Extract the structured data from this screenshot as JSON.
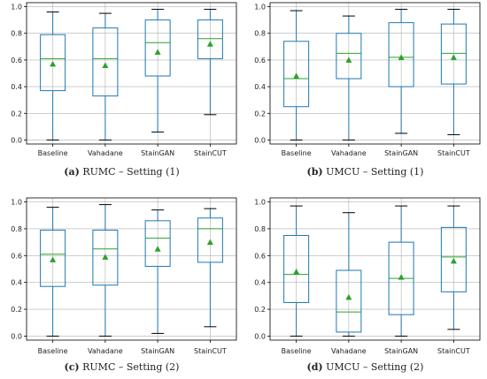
{
  "chart_data": [
    {
      "type": "box",
      "categories": [
        "Baseline",
        "Vahadane",
        "StainGAN",
        "StainCUT"
      ],
      "yticks": [
        "0.0",
        "0.2",
        "0.4",
        "0.6",
        "0.8",
        "1.0"
      ],
      "ylim": [
        -0.03,
        1.03
      ],
      "grid": true,
      "caption_label": "(a)",
      "caption_text": "RUMC – Setting (1)",
      "boxes": [
        {
          "whisker_low": 0.0,
          "q1": 0.37,
          "median": 0.61,
          "q3": 0.79,
          "whisker_high": 0.96,
          "mean": 0.57
        },
        {
          "whisker_low": 0.0,
          "q1": 0.33,
          "median": 0.61,
          "q3": 0.84,
          "whisker_high": 0.95,
          "mean": 0.56
        },
        {
          "whisker_low": 0.06,
          "q1": 0.48,
          "median": 0.73,
          "q3": 0.9,
          "whisker_high": 0.98,
          "mean": 0.66
        },
        {
          "whisker_low": 0.19,
          "q1": 0.61,
          "median": 0.76,
          "q3": 0.9,
          "whisker_high": 0.98,
          "mean": 0.72
        }
      ]
    },
    {
      "type": "box",
      "categories": [
        "Baseline",
        "Vahadane",
        "StainGAN",
        "StainCUT"
      ],
      "yticks": [
        "0.0",
        "0.2",
        "0.4",
        "0.6",
        "0.8",
        "1.0"
      ],
      "ylim": [
        -0.03,
        1.03
      ],
      "grid": true,
      "caption_label": "(b)",
      "caption_text": "UMCU – Setting (1)",
      "boxes": [
        {
          "whisker_low": 0.0,
          "q1": 0.25,
          "median": 0.46,
          "q3": 0.74,
          "whisker_high": 0.97,
          "mean": 0.48
        },
        {
          "whisker_low": 0.0,
          "q1": 0.46,
          "median": 0.65,
          "q3": 0.8,
          "whisker_high": 0.93,
          "mean": 0.6
        },
        {
          "whisker_low": 0.05,
          "q1": 0.4,
          "median": 0.62,
          "q3": 0.88,
          "whisker_high": 0.98,
          "mean": 0.62
        },
        {
          "whisker_low": 0.04,
          "q1": 0.42,
          "median": 0.65,
          "q3": 0.87,
          "whisker_high": 0.98,
          "mean": 0.62
        }
      ]
    },
    {
      "type": "box",
      "categories": [
        "Baseline",
        "Vahadane",
        "StainGAN",
        "StainCUT"
      ],
      "yticks": [
        "0.0",
        "0.2",
        "0.4",
        "0.6",
        "0.8",
        "1.0"
      ],
      "ylim": [
        -0.03,
        1.03
      ],
      "grid": true,
      "caption_label": "(c)",
      "caption_text": "RUMC – Setting (2)",
      "boxes": [
        {
          "whisker_low": 0.0,
          "q1": 0.37,
          "median": 0.61,
          "q3": 0.79,
          "whisker_high": 0.96,
          "mean": 0.57
        },
        {
          "whisker_low": 0.0,
          "q1": 0.38,
          "median": 0.65,
          "q3": 0.79,
          "whisker_high": 0.98,
          "mean": 0.59
        },
        {
          "whisker_low": 0.02,
          "q1": 0.52,
          "median": 0.73,
          "q3": 0.86,
          "whisker_high": 0.94,
          "mean": 0.65
        },
        {
          "whisker_low": 0.07,
          "q1": 0.55,
          "median": 0.8,
          "q3": 0.88,
          "whisker_high": 0.95,
          "mean": 0.7
        }
      ]
    },
    {
      "type": "box",
      "categories": [
        "Baseline",
        "Vahadane",
        "StainGAN",
        "StainCUT"
      ],
      "yticks": [
        "0.0",
        "0.2",
        "0.4",
        "0.6",
        "0.8",
        "1.0"
      ],
      "ylim": [
        -0.03,
        1.03
      ],
      "grid": true,
      "caption_label": "(d)",
      "caption_text": "UMCU – Setting (2)",
      "boxes": [
        {
          "whisker_low": 0.0,
          "q1": 0.25,
          "median": 0.46,
          "q3": 0.75,
          "whisker_high": 0.97,
          "mean": 0.48
        },
        {
          "whisker_low": 0.0,
          "q1": 0.03,
          "median": 0.18,
          "q3": 0.49,
          "whisker_high": 0.92,
          "mean": 0.29
        },
        {
          "whisker_low": 0.0,
          "q1": 0.16,
          "median": 0.43,
          "q3": 0.7,
          "whisker_high": 0.97,
          "mean": 0.44
        },
        {
          "whisker_low": 0.05,
          "q1": 0.33,
          "median": 0.59,
          "q3": 0.81,
          "whisker_high": 0.97,
          "mean": 0.56
        }
      ]
    }
  ],
  "colors": {
    "box": "#1f77b4",
    "median": "#2ca02c",
    "mean": "#2ca02c",
    "whisker": "#000000",
    "grid": "#b0b0b0",
    "axis": "#000000"
  }
}
